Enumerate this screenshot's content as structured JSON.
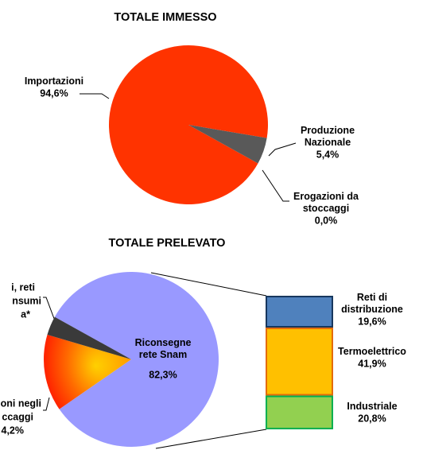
{
  "chart_data": [
    {
      "type": "pie",
      "title": "TOTALE IMMESSO",
      "categories": [
        "Importazioni",
        "Produzione Nazionale",
        "Erogazioni da stoccaggi"
      ],
      "values": [
        94.6,
        5.4,
        0.0
      ],
      "value_labels": [
        "94,6%",
        "5,4%",
        "0,0%"
      ],
      "colors": [
        "#ff3300",
        "#595959",
        "#a6a6a6"
      ]
    },
    {
      "type": "bar-of-pie",
      "title": "TOTALE PRELEVATO",
      "categories": [
        "Riconsegne rete Snam",
        null,
        null
      ],
      "values": [
        82.3,
        14.2,
        3.5
      ],
      "value_labels": [
        "82,3%",
        null,
        null
      ],
      "colors": [
        "#9999ff",
        "url(#orangeGrad)",
        "#3a3a3a"
      ],
      "annotations": [
        "i, reti",
        "nsumi",
        "a*",
        "oni negli",
        "ccaggi",
        "4,2%"
      ],
      "breakdown": {
        "categories": [
          "Reti di distribuzione",
          "Termoelettrico",
          "Industriale"
        ],
        "values": [
          19.6,
          41.9,
          20.8
        ],
        "value_labels": [
          "19,6%",
          "41,9%",
          "20,8%"
        ],
        "colors": [
          "#4f81bd",
          "#ffc000",
          "#92d050"
        ],
        "borders": [
          "#17375e",
          "#e46c0a",
          "#00b050"
        ]
      }
    }
  ]
}
